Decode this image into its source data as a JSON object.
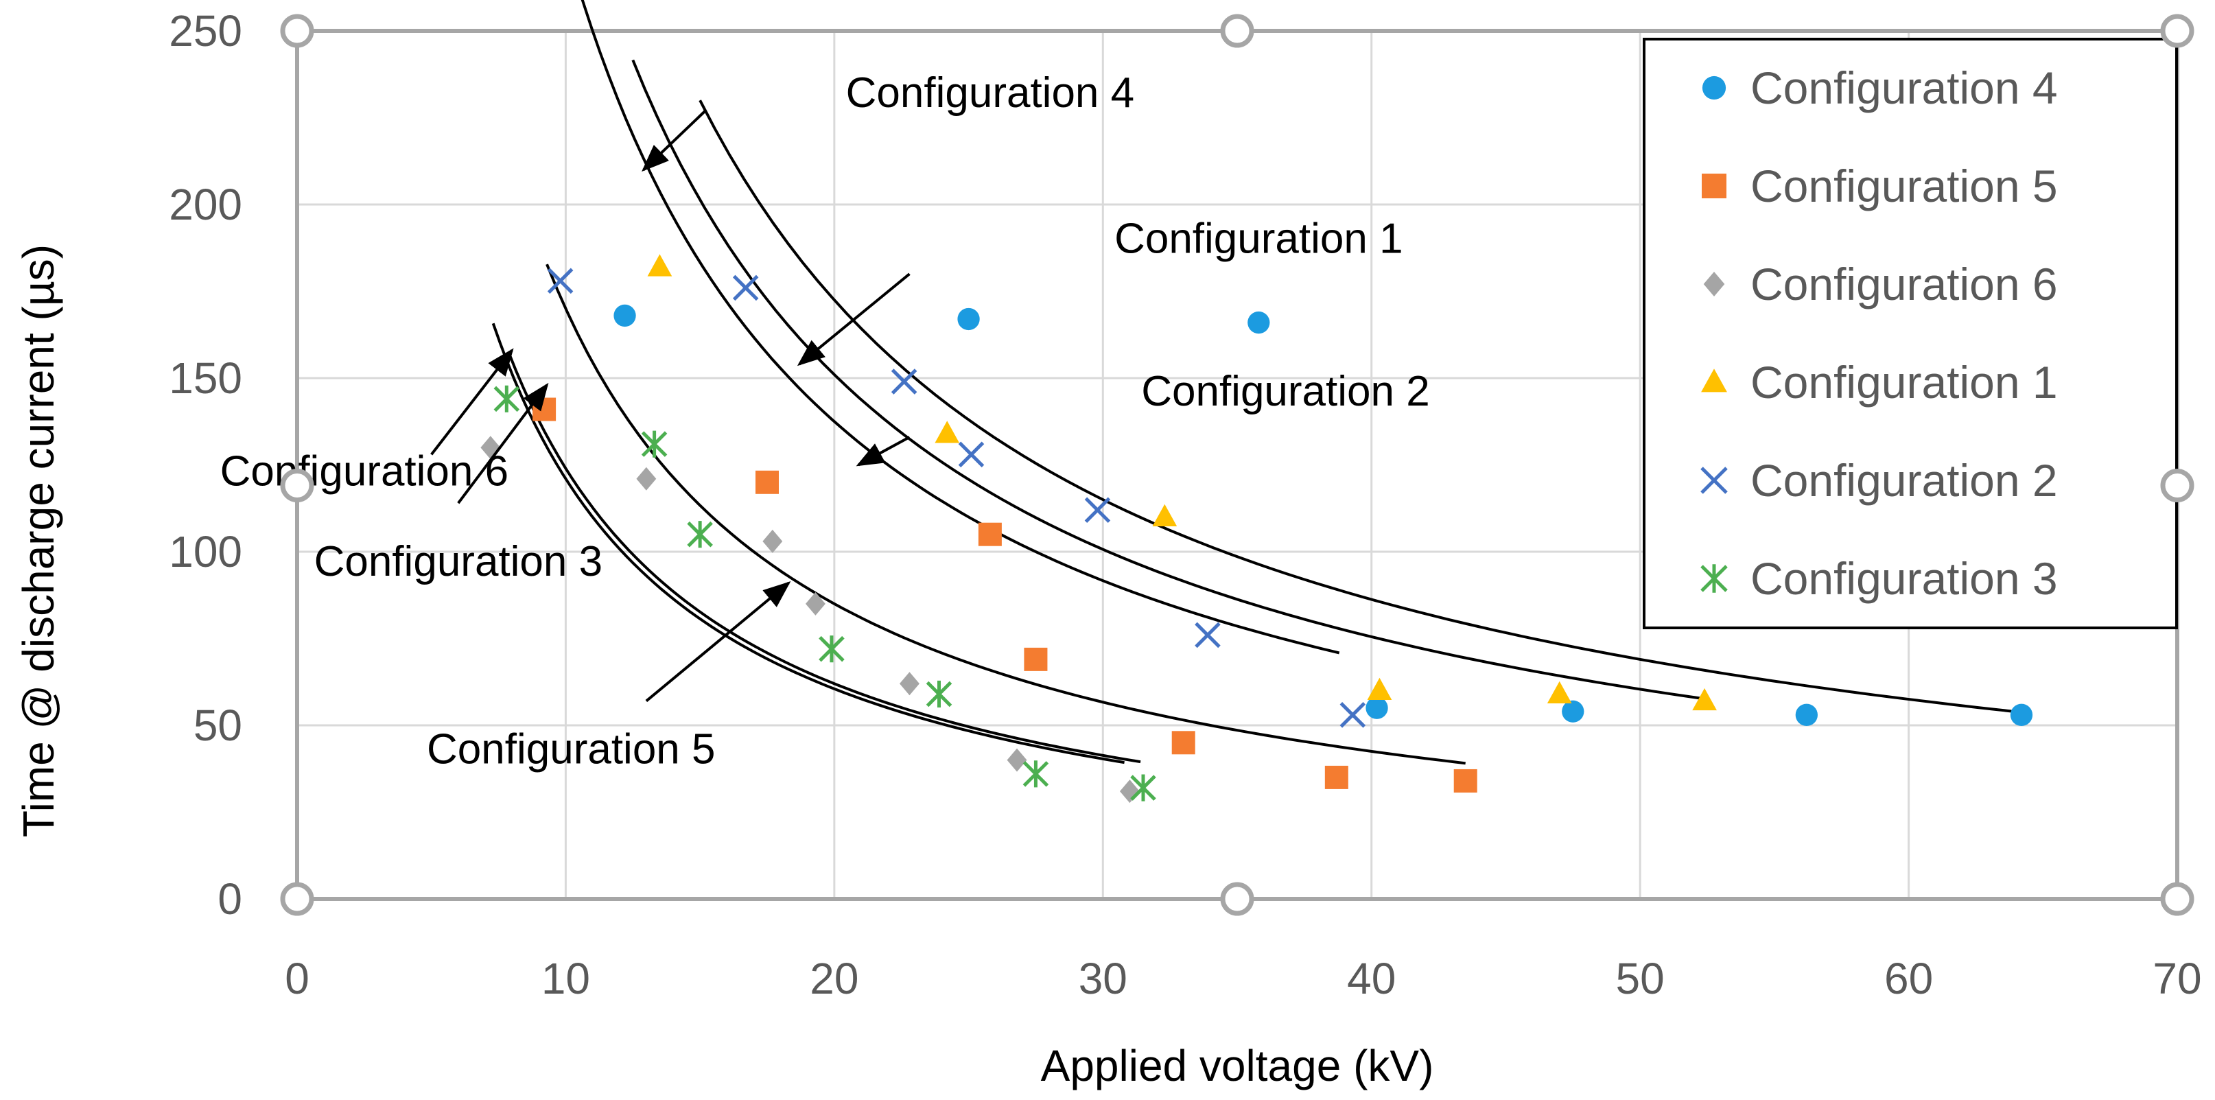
{
  "chart_data": {
    "type": "scatter",
    "title": "",
    "xlabel": "Applied voltage (kV)",
    "ylabel": "Time @ discharge current (µs)",
    "xlim": [
      0,
      70
    ],
    "ylim": [
      0,
      250
    ],
    "xticks": [
      0,
      10,
      20,
      30,
      40,
      50,
      60,
      70
    ],
    "yticks": [
      0,
      50,
      100,
      150,
      200,
      250
    ],
    "xtick_labels": [
      "0",
      "10",
      "20",
      "30",
      "40",
      "50",
      "60",
      "70"
    ],
    "ytick_labels": [
      "0",
      "50",
      "100",
      "150",
      "200",
      "250"
    ],
    "grid": true,
    "legend_position": "top-right",
    "series": [
      {
        "name": "Configuration 4",
        "marker": "circle",
        "color": "#1C9BE0",
        "points": [
          [
            12.2,
            168
          ],
          [
            25,
            167
          ],
          [
            35.8,
            166
          ],
          [
            40.2,
            55
          ],
          [
            47.5,
            54
          ],
          [
            56.2,
            53
          ],
          [
            64.2,
            53
          ]
        ]
      },
      {
        "name": "Configuration 5",
        "marker": "square",
        "color": "#F47C30",
        "points": [
          [
            9.2,
            141
          ],
          [
            17.5,
            120
          ],
          [
            25.8,
            105
          ],
          [
            27.5,
            69
          ],
          [
            33,
            45
          ],
          [
            38.7,
            35
          ],
          [
            43.5,
            34
          ]
        ]
      },
      {
        "name": "Configuration 6",
        "marker": "diamond",
        "color": "#A5A5A5",
        "points": [
          [
            7.2,
            130
          ],
          [
            13,
            121
          ],
          [
            17.7,
            103
          ],
          [
            19.3,
            85
          ],
          [
            22.8,
            62
          ],
          [
            26.8,
            40
          ],
          [
            31,
            31
          ]
        ]
      },
      {
        "name": "Configuration 1",
        "marker": "triangle",
        "color": "#FFC000",
        "points": [
          [
            13.5,
            182
          ],
          [
            24.2,
            134
          ],
          [
            32.3,
            110
          ],
          [
            40.3,
            60
          ],
          [
            47,
            59
          ],
          [
            52.4,
            57
          ]
        ]
      },
      {
        "name": "Configuration 2",
        "marker": "x",
        "color": "#4472C4",
        "points": [
          [
            9.8,
            178
          ],
          [
            16.7,
            176
          ],
          [
            22.6,
            149
          ],
          [
            25.1,
            128
          ],
          [
            29.8,
            112
          ],
          [
            33.9,
            76
          ],
          [
            39.3,
            53
          ]
        ]
      },
      {
        "name": "Configuration 3",
        "marker": "star",
        "color": "#4CAF50",
        "points": [
          [
            7.8,
            144
          ],
          [
            13.3,
            131
          ],
          [
            15,
            105
          ],
          [
            19.9,
            72
          ],
          [
            23.9,
            59
          ],
          [
            27.5,
            36
          ],
          [
            31.5,
            32
          ]
        ]
      }
    ],
    "fit_curves": [
      {
        "name": "Configuration 4",
        "k": 3450,
        "x_start": 15,
        "x_end": 64.2
      },
      {
        "name": "Configuration 1",
        "k": 3020,
        "x_start": 12.5,
        "x_end": 52.4
      },
      {
        "name": "Configuration 2",
        "k": 2750,
        "x_start": 10,
        "x_end": 38.8
      },
      {
        "name": "Configuration 5",
        "k": 1700,
        "x_start": 9.3,
        "x_end": 43.5
      },
      {
        "name": "Configuration 3",
        "k": 1240,
        "x_start": 7.9,
        "x_end": 31.4
      },
      {
        "name": "Configuration 6",
        "k": 1210,
        "x_start": 7.3,
        "x_end": 30.8
      }
    ],
    "annotations": [
      {
        "text": "Configuration 4",
        "label_at": [
          25.8,
          232
        ],
        "arrow_from": [
          15.2,
          227
        ],
        "arrow_to": [
          12.9,
          210
        ]
      },
      {
        "text": "Configuration 1",
        "label_at": [
          35.8,
          190
        ],
        "arrow_from": [
          22.8,
          180
        ],
        "arrow_to": [
          18.7,
          154
        ]
      },
      {
        "text": "Configuration 2",
        "label_at": [
          36.8,
          146
        ],
        "arrow_from": [
          22.8,
          133
        ],
        "arrow_to": [
          20.9,
          125
        ]
      },
      {
        "text": "Configuration 6",
        "label_at": [
          2.5,
          123
        ],
        "arrow_from": [
          5,
          128
        ],
        "arrow_to": [
          8,
          158
        ]
      },
      {
        "text": "Configuration 3",
        "label_at": [
          6,
          97
        ],
        "arrow_from": [
          6,
          114
        ],
        "arrow_to": [
          9.3,
          148
        ]
      },
      {
        "text": "Configuration 5",
        "label_at": [
          10.2,
          43
        ],
        "arrow_from": [
          13,
          57
        ],
        "arrow_to": [
          18.3,
          91
        ]
      }
    ]
  },
  "handles": {
    "color": "#A6A6A6"
  }
}
